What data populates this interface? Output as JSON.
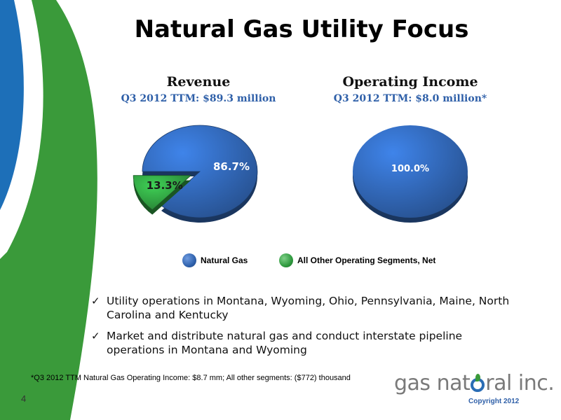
{
  "slide": {
    "title": "Natural Gas Utility Focus",
    "page_number": "4",
    "copyright": "Copyright 2012",
    "logo_text_before": "gas nat",
    "logo_text_after": "ral inc.",
    "footnote": "*Q3 2012 TTM Natural Gas Operating Income: $8.7 mm; All other segments: ($772) thousand"
  },
  "colors": {
    "natural_gas": "#2f62ad",
    "other_segments": "#2f9a3f",
    "swoosh_blue": "#1d6fb8",
    "swoosh_green": "#3a9a3a"
  },
  "chart_data": [
    {
      "type": "pie",
      "title": "Revenue",
      "subtitle": "Q3 2012 TTM: $89.3 million",
      "slices": [
        {
          "label": "Natural Gas",
          "value": 86.7,
          "display": "86.7%"
        },
        {
          "label": "All Other Operating Segments, Net",
          "value": 13.3,
          "display": "13.3%",
          "exploded": true
        }
      ]
    },
    {
      "type": "pie",
      "title": "Operating Income",
      "subtitle": "Q3 2012 TTM:  $8.0 million*",
      "slices": [
        {
          "label": "Natural Gas",
          "value": 100.0,
          "display": "100.0%"
        }
      ]
    }
  ],
  "legend": [
    {
      "label": "Natural Gas",
      "color": "#2f62ad"
    },
    {
      "label": "All Other Operating Segments, Net",
      "color": "#2f9a3f"
    }
  ],
  "bullets": [
    {
      "check": "✓",
      "text": "Utility operations in Montana, Wyoming, Ohio, Pennsylvania, Maine, North Carolina and Kentucky"
    },
    {
      "check": "✓",
      "text": "Market and distribute natural gas and conduct interstate pipeline operations in Montana and Wyoming"
    }
  ]
}
